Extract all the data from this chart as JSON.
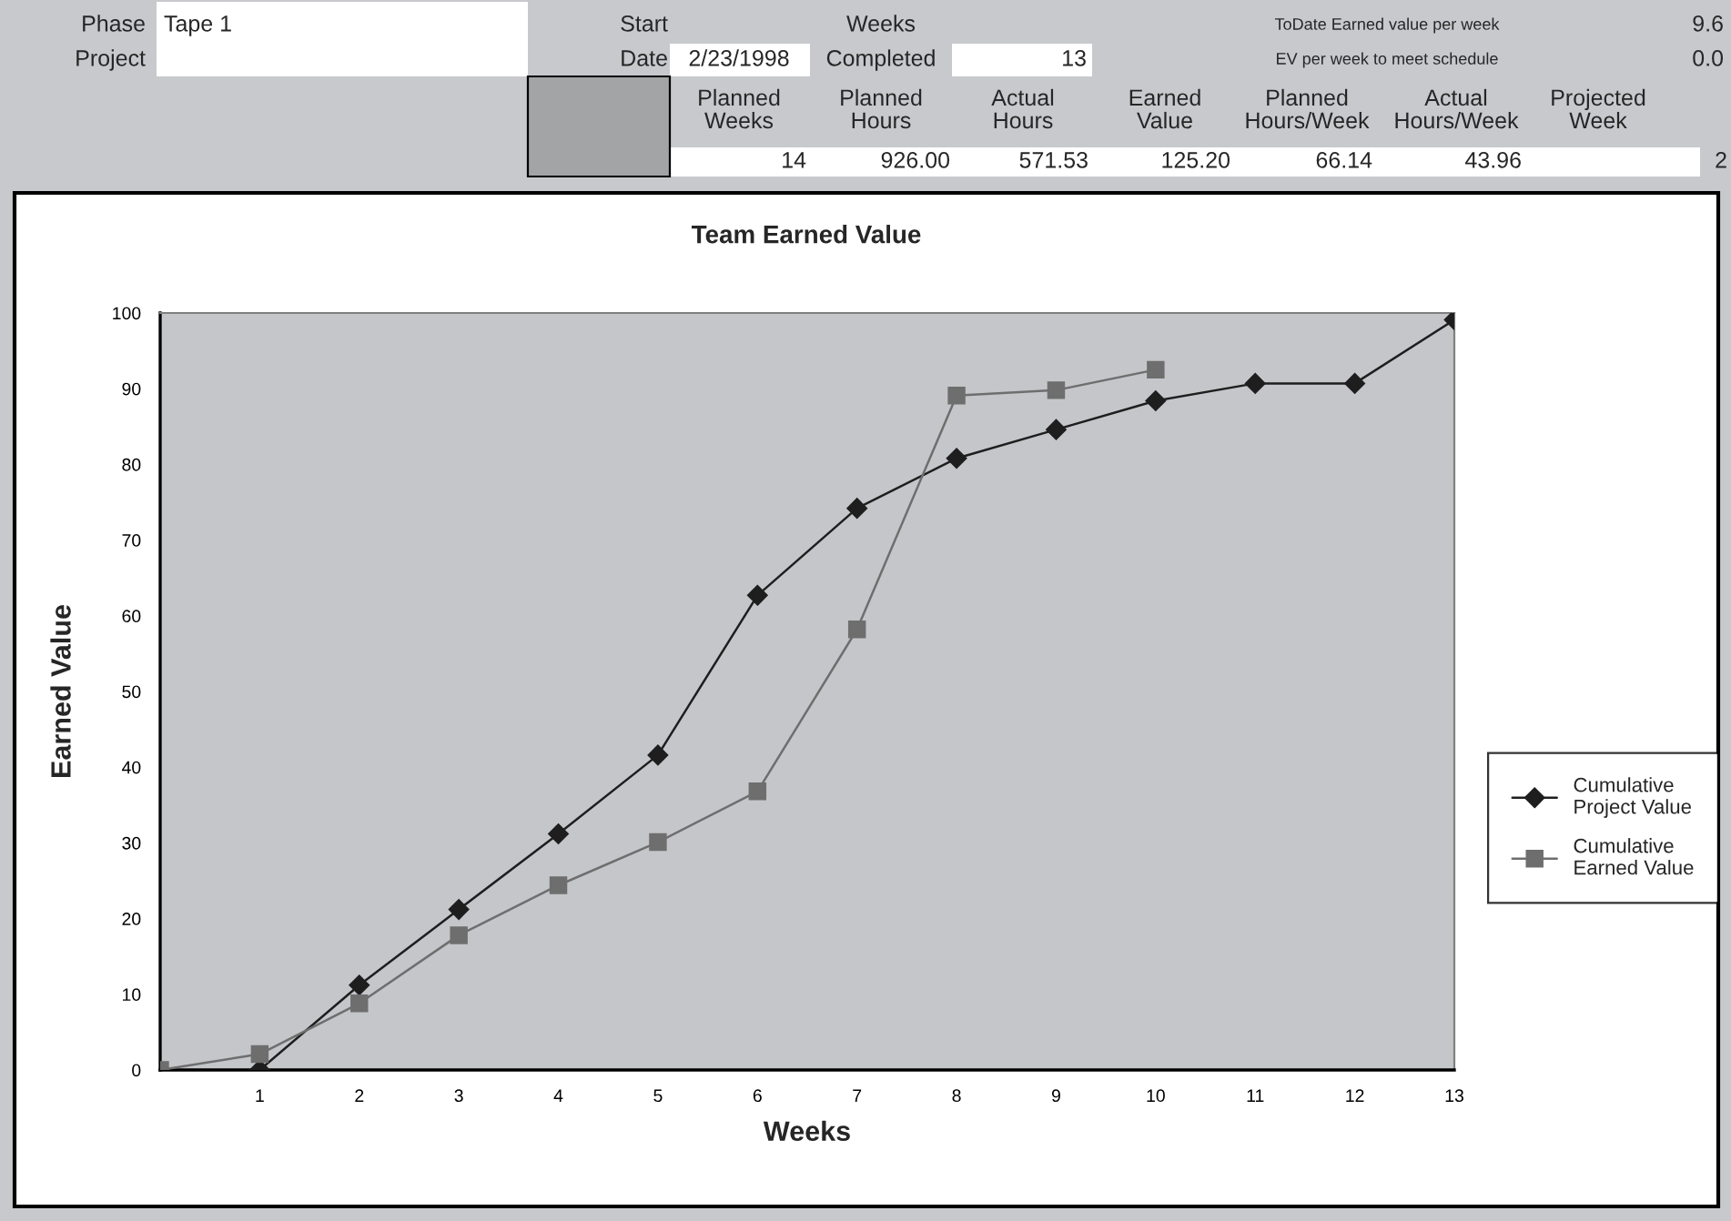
{
  "chart_data": {
    "type": "line",
    "title": "Team Earned Value",
    "xlabel": "Weeks",
    "ylabel": "Earned Value",
    "x": [
      0,
      1,
      2,
      3,
      4,
      5,
      6,
      7,
      8,
      9,
      10,
      11,
      12,
      13
    ],
    "series": [
      {
        "name": "Cumulative Project Value",
        "color": "#1e1e1e",
        "marker": "diamond",
        "values": [
          null,
          0,
          11.2,
          21.2,
          31.2,
          41.6,
          62.7,
          74.2,
          80.8,
          84.6,
          88.4,
          90.7,
          90.7,
          99.1
        ]
      },
      {
        "name": "Cumulative Earned Value",
        "color": "#6e6e6e",
        "marker": "square",
        "values": [
          0,
          2.1,
          8.8,
          17.8,
          24.4,
          30.1,
          36.8,
          58.2,
          89.1,
          89.8,
          92.5,
          null,
          null,
          null
        ]
      }
    ],
    "xlim": [
      0,
      13
    ],
    "xticks": [
      1,
      2,
      3,
      4,
      5,
      6,
      7,
      8,
      9,
      10,
      11,
      12,
      13
    ],
    "ylim": [
      0,
      100
    ],
    "yticks": [
      0,
      10,
      20,
      30,
      40,
      50,
      60,
      70,
      80,
      90,
      100
    ],
    "grid": false,
    "legend": "right",
    "line_style": "solid",
    "annotations": [
      "Phase",
      "Tape 1",
      "Project",
      "Start",
      "Date",
      "2/23/1998",
      "Weeks",
      "Completed",
      "13",
      "ToDate Earned value per week",
      "9.6",
      "EV per week to meet schedule",
      "0.0",
      "Planned\nWeeks",
      "Planned\nHours",
      "Actual\nHours",
      "Earned\nValue",
      "Planned\nHours/Week",
      "Actual\nHours/Week",
      "Projected\nWeek",
      "14",
      "926.00",
      "571.53",
      "125.20",
      "66.14",
      "43.96",
      "2"
    ]
  }
}
